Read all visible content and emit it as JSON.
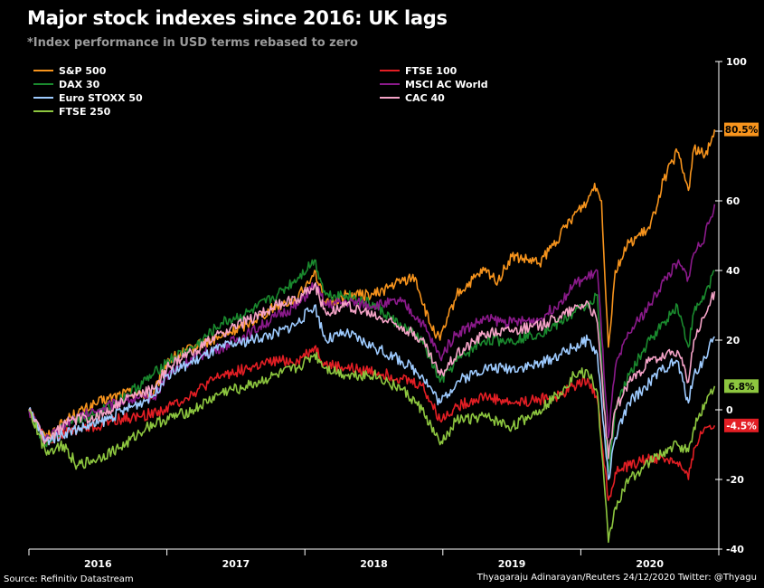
{
  "title": "Major stock indexes since 2016: UK lags",
  "subtitle": "*Index performance in USD terms rebased to zero",
  "source": "Source: Refinitiv Datastream",
  "credit": "Thyagaraju Adinarayan/Reuters 24/12/2020 Twitter: @Thyagu",
  "chart_data": {
    "type": "line",
    "title": "Major stock indexes since 2016: UK lags",
    "subtitle": "*Index performance in USD terms rebased to zero",
    "xlabel": "",
    "ylabel": "",
    "x_unit": "year",
    "xlim": [
      2016,
      2021
    ],
    "ylim": [
      -40,
      100
    ],
    "y_ticks": [
      -40,
      -20,
      0,
      20,
      40,
      60,
      80,
      100
    ],
    "x_tick_labels": [
      "2016",
      "2017",
      "2018",
      "2019",
      "2020"
    ],
    "x_tick_positions": [
      2016.5,
      2017.5,
      2018.5,
      2019.5,
      2020.5
    ],
    "legend_position": "top",
    "grid": false,
    "series": [
      {
        "name": "S&P 500",
        "color": "#f7941d",
        "end_label": "80.5%",
        "points": [
          [
            2016.0,
            0
          ],
          [
            2016.12,
            -8
          ],
          [
            2016.3,
            -2
          ],
          [
            2016.5,
            2
          ],
          [
            2016.7,
            5
          ],
          [
            2016.9,
            4
          ],
          [
            2017.0,
            14
          ],
          [
            2017.2,
            18
          ],
          [
            2017.4,
            21
          ],
          [
            2017.6,
            25
          ],
          [
            2017.8,
            30
          ],
          [
            2017.95,
            32
          ],
          [
            2018.07,
            40
          ],
          [
            2018.15,
            30
          ],
          [
            2018.3,
            33
          ],
          [
            2018.5,
            33
          ],
          [
            2018.7,
            37
          ],
          [
            2018.8,
            38
          ],
          [
            2018.9,
            25
          ],
          [
            2018.98,
            20
          ],
          [
            2019.1,
            33
          ],
          [
            2019.3,
            40
          ],
          [
            2019.4,
            37
          ],
          [
            2019.5,
            44
          ],
          [
            2019.7,
            42
          ],
          [
            2019.85,
            50
          ],
          [
            2019.95,
            56
          ],
          [
            2020.05,
            60
          ],
          [
            2020.1,
            65
          ],
          [
            2020.15,
            60
          ],
          [
            2020.2,
            18
          ],
          [
            2020.25,
            40
          ],
          [
            2020.35,
            48
          ],
          [
            2020.5,
            52
          ],
          [
            2020.6,
            66
          ],
          [
            2020.7,
            74
          ],
          [
            2020.78,
            63
          ],
          [
            2020.82,
            75
          ],
          [
            2020.9,
            73
          ],
          [
            2020.97,
            80.5
          ]
        ]
      },
      {
        "name": "FTSE 100",
        "color": "#e31e24",
        "end_label": "-4.5%",
        "points": [
          [
            2016.0,
            0
          ],
          [
            2016.12,
            -9
          ],
          [
            2016.3,
            -6
          ],
          [
            2016.5,
            -5
          ],
          [
            2016.6,
            -3
          ],
          [
            2016.8,
            -2
          ],
          [
            2016.98,
            0
          ],
          [
            2017.2,
            5
          ],
          [
            2017.4,
            10
          ],
          [
            2017.6,
            12
          ],
          [
            2017.8,
            14
          ],
          [
            2017.95,
            14
          ],
          [
            2018.07,
            18
          ],
          [
            2018.15,
            13
          ],
          [
            2018.3,
            12
          ],
          [
            2018.5,
            11
          ],
          [
            2018.7,
            9
          ],
          [
            2018.85,
            7
          ],
          [
            2018.98,
            -3
          ],
          [
            2019.1,
            1
          ],
          [
            2019.3,
            4
          ],
          [
            2019.5,
            2
          ],
          [
            2019.7,
            3
          ],
          [
            2019.85,
            4
          ],
          [
            2019.95,
            7
          ],
          [
            2020.05,
            9
          ],
          [
            2020.12,
            3
          ],
          [
            2020.2,
            -26
          ],
          [
            2020.25,
            -18
          ],
          [
            2020.35,
            -16
          ],
          [
            2020.5,
            -14
          ],
          [
            2020.6,
            -14
          ],
          [
            2020.7,
            -15
          ],
          [
            2020.78,
            -20
          ],
          [
            2020.82,
            -11
          ],
          [
            2020.9,
            -5
          ],
          [
            2020.97,
            -4.5
          ]
        ]
      },
      {
        "name": "DAX 30",
        "color": "#1a8a2e",
        "end_label": "",
        "points": [
          [
            2016.0,
            0
          ],
          [
            2016.12,
            -10
          ],
          [
            2016.3,
            -3
          ],
          [
            2016.5,
            -1
          ],
          [
            2016.7,
            4
          ],
          [
            2016.9,
            10
          ],
          [
            2017.0,
            14
          ],
          [
            2017.2,
            18
          ],
          [
            2017.4,
            25
          ],
          [
            2017.6,
            28
          ],
          [
            2017.8,
            33
          ],
          [
            2017.95,
            38
          ],
          [
            2018.07,
            43
          ],
          [
            2018.15,
            33
          ],
          [
            2018.3,
            33
          ],
          [
            2018.5,
            30
          ],
          [
            2018.7,
            24
          ],
          [
            2018.85,
            20
          ],
          [
            2018.98,
            8
          ],
          [
            2019.1,
            14
          ],
          [
            2019.3,
            20
          ],
          [
            2019.5,
            20
          ],
          [
            2019.7,
            22
          ],
          [
            2019.85,
            25
          ],
          [
            2019.95,
            28
          ],
          [
            2020.05,
            30
          ],
          [
            2020.12,
            33
          ],
          [
            2020.2,
            -18
          ],
          [
            2020.25,
            0
          ],
          [
            2020.35,
            10
          ],
          [
            2020.5,
            20
          ],
          [
            2020.6,
            25
          ],
          [
            2020.7,
            30
          ],
          [
            2020.78,
            18
          ],
          [
            2020.82,
            28
          ],
          [
            2020.9,
            33
          ],
          [
            2020.97,
            40
          ]
        ]
      },
      {
        "name": "MSCI AC World",
        "color": "#8b1a8b",
        "end_label": "",
        "points": [
          [
            2016.0,
            0
          ],
          [
            2016.12,
            -9
          ],
          [
            2016.3,
            -3
          ],
          [
            2016.5,
            0
          ],
          [
            2016.7,
            3
          ],
          [
            2016.9,
            3
          ],
          [
            2017.0,
            10
          ],
          [
            2017.2,
            15
          ],
          [
            2017.4,
            18
          ],
          [
            2017.6,
            22
          ],
          [
            2017.8,
            27
          ],
          [
            2017.95,
            30
          ],
          [
            2018.07,
            36
          ],
          [
            2018.15,
            30
          ],
          [
            2018.3,
            31
          ],
          [
            2018.5,
            30
          ],
          [
            2018.7,
            31
          ],
          [
            2018.85,
            25
          ],
          [
            2018.98,
            15
          ],
          [
            2019.1,
            22
          ],
          [
            2019.3,
            26
          ],
          [
            2019.5,
            25
          ],
          [
            2019.7,
            26
          ],
          [
            2019.85,
            31
          ],
          [
            2019.95,
            36
          ],
          [
            2020.05,
            38
          ],
          [
            2020.12,
            40
          ],
          [
            2020.2,
            -8
          ],
          [
            2020.25,
            12
          ],
          [
            2020.35,
            22
          ],
          [
            2020.5,
            30
          ],
          [
            2020.6,
            37
          ],
          [
            2020.7,
            42
          ],
          [
            2020.78,
            38
          ],
          [
            2020.82,
            45
          ],
          [
            2020.9,
            50
          ],
          [
            2020.97,
            59
          ]
        ]
      },
      {
        "name": "Euro STOXX 50",
        "color": "#9ecbff",
        "end_label": "",
        "points": [
          [
            2016.0,
            0
          ],
          [
            2016.12,
            -9
          ],
          [
            2016.3,
            -6
          ],
          [
            2016.5,
            -4
          ],
          [
            2016.7,
            0
          ],
          [
            2016.9,
            4
          ],
          [
            2017.0,
            10
          ],
          [
            2017.2,
            14
          ],
          [
            2017.4,
            18
          ],
          [
            2017.6,
            20
          ],
          [
            2017.8,
            22
          ],
          [
            2017.95,
            25
          ],
          [
            2018.07,
            30
          ],
          [
            2018.15,
            20
          ],
          [
            2018.3,
            22
          ],
          [
            2018.5,
            18
          ],
          [
            2018.7,
            14
          ],
          [
            2018.85,
            10
          ],
          [
            2018.98,
            2
          ],
          [
            2019.1,
            8
          ],
          [
            2019.3,
            12
          ],
          [
            2019.5,
            12
          ],
          [
            2019.7,
            13
          ],
          [
            2019.85,
            16
          ],
          [
            2019.95,
            18
          ],
          [
            2020.05,
            20
          ],
          [
            2020.12,
            16
          ],
          [
            2020.2,
            -20
          ],
          [
            2020.25,
            -8
          ],
          [
            2020.35,
            2
          ],
          [
            2020.5,
            8
          ],
          [
            2020.6,
            12
          ],
          [
            2020.7,
            14
          ],
          [
            2020.78,
            2
          ],
          [
            2020.82,
            10
          ],
          [
            2020.9,
            15
          ],
          [
            2020.97,
            21
          ]
        ]
      },
      {
        "name": "CAC 40",
        "color": "#f5a3c7",
        "end_label": "",
        "points": [
          [
            2016.0,
            0
          ],
          [
            2016.12,
            -9
          ],
          [
            2016.3,
            -3
          ],
          [
            2016.5,
            -2
          ],
          [
            2016.7,
            3
          ],
          [
            2016.9,
            6
          ],
          [
            2017.0,
            12
          ],
          [
            2017.2,
            17
          ],
          [
            2017.4,
            22
          ],
          [
            2017.6,
            26
          ],
          [
            2017.8,
            30
          ],
          [
            2017.95,
            32
          ],
          [
            2018.07,
            36
          ],
          [
            2018.15,
            28
          ],
          [
            2018.3,
            30
          ],
          [
            2018.5,
            27
          ],
          [
            2018.7,
            24
          ],
          [
            2018.85,
            20
          ],
          [
            2018.98,
            10
          ],
          [
            2019.1,
            16
          ],
          [
            2019.3,
            22
          ],
          [
            2019.5,
            23
          ],
          [
            2019.7,
            24
          ],
          [
            2019.85,
            27
          ],
          [
            2019.95,
            29
          ],
          [
            2020.05,
            31
          ],
          [
            2020.12,
            25
          ],
          [
            2020.2,
            -14
          ],
          [
            2020.25,
            0
          ],
          [
            2020.35,
            8
          ],
          [
            2020.5,
            14
          ],
          [
            2020.6,
            15
          ],
          [
            2020.7,
            17
          ],
          [
            2020.78,
            8
          ],
          [
            2020.82,
            20
          ],
          [
            2020.9,
            27
          ],
          [
            2020.97,
            34
          ]
        ]
      },
      {
        "name": "FTSE 250",
        "color": "#8dc63f",
        "end_label": "6.8%",
        "points": [
          [
            2016.0,
            0
          ],
          [
            2016.12,
            -12
          ],
          [
            2016.25,
            -10
          ],
          [
            2016.35,
            -16
          ],
          [
            2016.5,
            -14
          ],
          [
            2016.7,
            -10
          ],
          [
            2016.85,
            -5
          ],
          [
            2016.98,
            -3
          ],
          [
            2017.2,
            0
          ],
          [
            2017.4,
            5
          ],
          [
            2017.6,
            7
          ],
          [
            2017.8,
            10
          ],
          [
            2017.95,
            12
          ],
          [
            2018.07,
            16
          ],
          [
            2018.15,
            12
          ],
          [
            2018.3,
            10
          ],
          [
            2018.5,
            10
          ],
          [
            2018.7,
            6
          ],
          [
            2018.85,
            0
          ],
          [
            2018.98,
            -10
          ],
          [
            2019.1,
            -3
          ],
          [
            2019.3,
            -2
          ],
          [
            2019.5,
            -5
          ],
          [
            2019.7,
            0
          ],
          [
            2019.85,
            5
          ],
          [
            2019.95,
            10
          ],
          [
            2020.05,
            11
          ],
          [
            2020.12,
            5
          ],
          [
            2020.2,
            -38
          ],
          [
            2020.25,
            -28
          ],
          [
            2020.35,
            -20
          ],
          [
            2020.5,
            -15
          ],
          [
            2020.6,
            -12
          ],
          [
            2020.7,
            -10
          ],
          [
            2020.78,
            -12
          ],
          [
            2020.82,
            -5
          ],
          [
            2020.9,
            2
          ],
          [
            2020.97,
            6.8
          ]
        ]
      }
    ]
  }
}
